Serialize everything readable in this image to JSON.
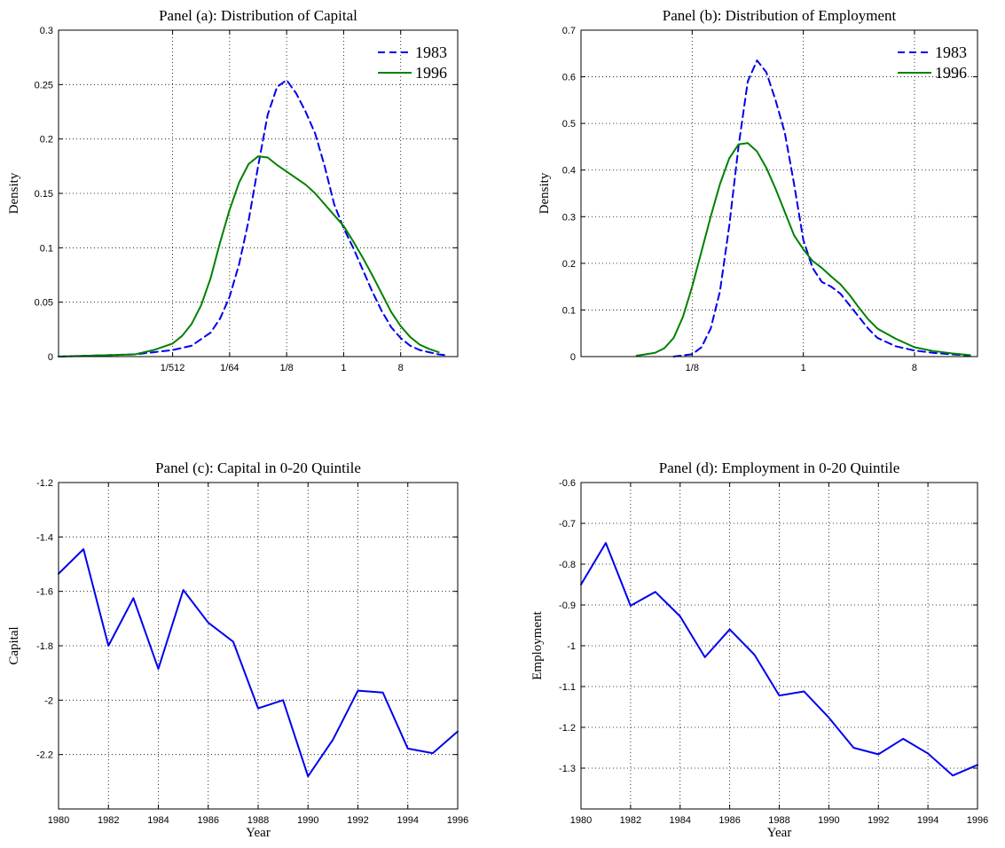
{
  "chart_data": [
    {
      "id": "a",
      "type": "line",
      "title": "Panel (a): Distribution of Capital",
      "xlabel": "",
      "ylabel": "Density",
      "x_scale": "log2",
      "xlim": [
        -15,
        6
      ],
      "ylim": [
        0,
        0.3
      ],
      "xticks": [
        {
          "label": "1/512",
          "value": -9
        },
        {
          "label": "1/64",
          "value": -6
        },
        {
          "label": "1/8",
          "value": -3
        },
        {
          "label": "1",
          "value": 0
        },
        {
          "label": "8",
          "value": 3
        }
      ],
      "yticks": [
        {
          "label": "0",
          "value": 0
        },
        {
          "label": "0.05",
          "value": 0.05
        },
        {
          "label": "0.1",
          "value": 0.1
        },
        {
          "label": "0.15",
          "value": 0.15
        },
        {
          "label": "0.2",
          "value": 0.2
        },
        {
          "label": "0.25",
          "value": 0.25
        },
        {
          "label": "0.3",
          "value": 0.3
        }
      ],
      "grid": true,
      "legend": "top-right",
      "series": [
        {
          "name": "1983",
          "color": "#0000ee",
          "style": "dashed",
          "x": [
            -15,
            -13,
            -11,
            -10,
            -9,
            -8,
            -7,
            -6.5,
            -6,
            -5.5,
            -5,
            -4.5,
            -4,
            -3.5,
            -3,
            -2.5,
            -2,
            -1.5,
            -1,
            -0.5,
            0,
            0.5,
            1,
            1.5,
            2,
            2.5,
            3,
            3.5,
            4,
            4.5,
            5,
            5.5
          ],
          "y": [
            0.0,
            0.001,
            0.002,
            0.004,
            0.006,
            0.01,
            0.022,
            0.035,
            0.055,
            0.085,
            0.125,
            0.175,
            0.222,
            0.248,
            0.254,
            0.242,
            0.225,
            0.205,
            0.175,
            0.14,
            0.118,
            0.1,
            0.08,
            0.06,
            0.042,
            0.027,
            0.017,
            0.01,
            0.006,
            0.004,
            0.002,
            0.001
          ]
        },
        {
          "name": "1996",
          "color": "#008000",
          "style": "solid",
          "x": [
            -15,
            -13,
            -11,
            -10,
            -9,
            -8.5,
            -8,
            -7.5,
            -7,
            -6.5,
            -6,
            -5.5,
            -5,
            -4.5,
            -4,
            -3.5,
            -3,
            -2.5,
            -2,
            -1.5,
            -1,
            -0.5,
            0,
            0.5,
            1,
            1.5,
            2,
            2.5,
            3,
            3.5,
            4,
            4.5,
            5
          ],
          "y": [
            0.0,
            0.001,
            0.002,
            0.006,
            0.012,
            0.019,
            0.03,
            0.047,
            0.072,
            0.105,
            0.135,
            0.16,
            0.177,
            0.184,
            0.183,
            0.176,
            0.17,
            0.164,
            0.158,
            0.15,
            0.14,
            0.13,
            0.12,
            0.106,
            0.091,
            0.075,
            0.058,
            0.041,
            0.028,
            0.018,
            0.011,
            0.007,
            0.004
          ]
        }
      ]
    },
    {
      "id": "b",
      "type": "line",
      "title": "Panel (b): Distribution of Employment",
      "xlabel": "",
      "ylabel": "Density",
      "x_scale": "log2",
      "xlim": [
        -6,
        4.7
      ],
      "ylim": [
        0,
        0.7
      ],
      "xticks": [
        {
          "label": "1/8",
          "value": -3
        },
        {
          "label": "1",
          "value": 0
        },
        {
          "label": "8",
          "value": 3
        }
      ],
      "yticks": [
        {
          "label": "0",
          "value": 0
        },
        {
          "label": "0.1",
          "value": 0.1
        },
        {
          "label": "0.2",
          "value": 0.2
        },
        {
          "label": "0.3",
          "value": 0.3
        },
        {
          "label": "0.4",
          "value": 0.4
        },
        {
          "label": "0.5",
          "value": 0.5
        },
        {
          "label": "0.6",
          "value": 0.6
        },
        {
          "label": "0.7",
          "value": 0.7
        }
      ],
      "grid": true,
      "legend": "top-right",
      "series": [
        {
          "name": "1983",
          "color": "#0000ee",
          "style": "dashed",
          "x": [
            -3.5,
            -3,
            -2.75,
            -2.5,
            -2.25,
            -2,
            -1.75,
            -1.5,
            -1.25,
            -1,
            -0.75,
            -0.5,
            -0.25,
            0,
            0.25,
            0.5,
            0.75,
            1,
            1.25,
            1.5,
            1.75,
            2,
            2.5,
            3,
            3.5,
            4,
            4.5
          ],
          "y": [
            0.0,
            0.005,
            0.02,
            0.06,
            0.14,
            0.28,
            0.45,
            0.59,
            0.635,
            0.61,
            0.55,
            0.48,
            0.37,
            0.25,
            0.19,
            0.16,
            0.15,
            0.135,
            0.11,
            0.085,
            0.06,
            0.04,
            0.022,
            0.013,
            0.008,
            0.005,
            0.002
          ]
        },
        {
          "name": "1996",
          "color": "#008000",
          "style": "solid",
          "x": [
            -4.5,
            -4,
            -3.75,
            -3.5,
            -3.25,
            -3,
            -2.75,
            -2.5,
            -2.25,
            -2,
            -1.75,
            -1.5,
            -1.25,
            -1,
            -0.75,
            -0.5,
            -0.25,
            0,
            0.25,
            0.5,
            0.75,
            1,
            1.25,
            1.5,
            1.75,
            2,
            2.5,
            3,
            3.5,
            4,
            4.5
          ],
          "y": [
            0.002,
            0.008,
            0.018,
            0.04,
            0.085,
            0.15,
            0.225,
            0.3,
            0.37,
            0.425,
            0.455,
            0.458,
            0.44,
            0.405,
            0.36,
            0.31,
            0.26,
            0.23,
            0.205,
            0.19,
            0.172,
            0.155,
            0.132,
            0.105,
            0.08,
            0.06,
            0.038,
            0.02,
            0.012,
            0.007,
            0.003
          ]
        }
      ]
    },
    {
      "id": "c",
      "type": "line",
      "title": "Panel (c): Capital in 0-20 Quintile",
      "xlabel": "Year",
      "ylabel": "Capital",
      "xlim": [
        1980,
        1996
      ],
      "ylim": [
        -2.4,
        -1.2
      ],
      "xticks": [
        {
          "label": "1980",
          "value": 1980
        },
        {
          "label": "1982",
          "value": 1982
        },
        {
          "label": "1984",
          "value": 1984
        },
        {
          "label": "1986",
          "value": 1986
        },
        {
          "label": "1988",
          "value": 1988
        },
        {
          "label": "1990",
          "value": 1990
        },
        {
          "label": "1992",
          "value": 1992
        },
        {
          "label": "1994",
          "value": 1994
        },
        {
          "label": "1996",
          "value": 1996
        }
      ],
      "yticks": [
        {
          "label": "-2.2",
          "value": -2.2
        },
        {
          "label": "-2",
          "value": -2.0
        },
        {
          "label": "-1.8",
          "value": -1.8
        },
        {
          "label": "-1.6",
          "value": -1.6
        },
        {
          "label": "-1.4",
          "value": -1.4
        },
        {
          "label": "-1.2",
          "value": -1.2
        }
      ],
      "grid": true,
      "series": [
        {
          "color": "#0000ee",
          "style": "solid",
          "x": [
            1980,
            1981,
            1982,
            1983,
            1984,
            1985,
            1986,
            1987,
            1988,
            1989,
            1990,
            1991,
            1992,
            1993,
            1994,
            1995,
            1996
          ],
          "y": [
            -1.535,
            -1.445,
            -1.8,
            -1.625,
            -1.885,
            -1.595,
            -1.715,
            -1.785,
            -2.03,
            -2.0,
            -2.28,
            -2.145,
            -1.965,
            -1.972,
            -2.178,
            -2.195,
            -2.115
          ]
        }
      ]
    },
    {
      "id": "d",
      "type": "line",
      "title": "Panel (d): Employment in 0-20 Quintile",
      "xlabel": "Year",
      "ylabel": "Employment",
      "xlim": [
        1980,
        1996
      ],
      "ylim": [
        -1.4,
        -0.6
      ],
      "xticks": [
        {
          "label": "1980",
          "value": 1980
        },
        {
          "label": "1982",
          "value": 1982
        },
        {
          "label": "1984",
          "value": 1984
        },
        {
          "label": "1986",
          "value": 1986
        },
        {
          "label": "1988",
          "value": 1988
        },
        {
          "label": "1990",
          "value": 1990
        },
        {
          "label": "1992",
          "value": 1992
        },
        {
          "label": "1994",
          "value": 1994
        },
        {
          "label": "1996",
          "value": 1996
        }
      ],
      "yticks": [
        {
          "label": "-1.3",
          "value": -1.3
        },
        {
          "label": "-1.2",
          "value": -1.2
        },
        {
          "label": "-1.1",
          "value": -1.1
        },
        {
          "label": "-1",
          "value": -1.0
        },
        {
          "label": "-0.9",
          "value": -0.9
        },
        {
          "label": "-0.8",
          "value": -0.8
        },
        {
          "label": "-0.7",
          "value": -0.7
        },
        {
          "label": "-0.6",
          "value": -0.6
        }
      ],
      "grid": true,
      "series": [
        {
          "color": "#0000ee",
          "style": "solid",
          "x": [
            1980,
            1981,
            1982,
            1983,
            1984,
            1985,
            1986,
            1987,
            1988,
            1989,
            1990,
            1991,
            1992,
            1993,
            1994,
            1995,
            1996
          ],
          "y": [
            -0.85,
            -0.748,
            -0.902,
            -0.868,
            -0.928,
            -1.028,
            -0.96,
            -1.022,
            -1.122,
            -1.112,
            -1.176,
            -1.25,
            -1.266,
            -1.228,
            -1.264,
            -1.318,
            -1.292
          ]
        }
      ]
    }
  ]
}
